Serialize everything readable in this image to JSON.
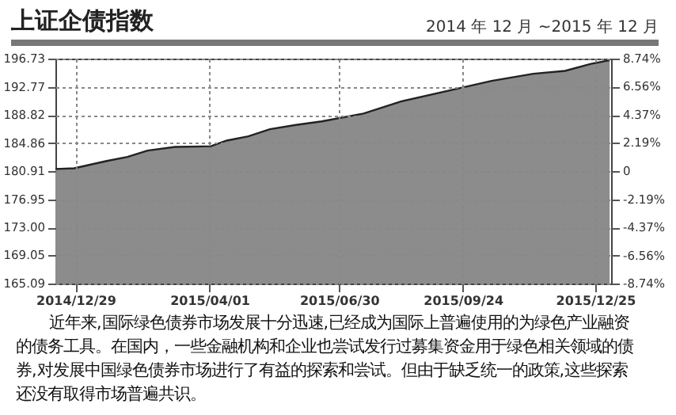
{
  "chart_data": {
    "type": "area",
    "title": "上证企债指数",
    "subtitle": "2014 年 12 月 ~2015 年 12 月",
    "x": [
      "2014-12-15",
      "2014-12-28",
      "2015-01-19",
      "2015-02-03",
      "2015-02-17",
      "2015-03-08",
      "2015-04-02",
      "2015-04-13",
      "2015-04-28",
      "2015-05-13",
      "2015-05-31",
      "2015-06-18",
      "2015-07-17",
      "2015-08-12",
      "2015-09-18",
      "2015-10-14",
      "2015-11-12",
      "2015-12-04",
      "2015-12-22",
      "2016-01-04"
    ],
    "series": [
      {
        "color": "#8c8c8c",
        "values": [
          181.2,
          181.3,
          182.3,
          182.9,
          183.8,
          184.3,
          184.4,
          185.2,
          185.8,
          186.8,
          187.4,
          187.9,
          189.0,
          190.7,
          192.4,
          193.6,
          194.6,
          195.0,
          196.0,
          196.5
        ]
      }
    ],
    "xlim": [
      "2014-12-15",
      "2016-01-05"
    ],
    "xticks": [
      {
        "value": "2014-12-29",
        "label": "2014/12/29"
      },
      {
        "value": "2015-04-01",
        "label": "2015/04/01"
      },
      {
        "value": "2015-06-30",
        "label": "2015/06/30"
      },
      {
        "value": "2015-09-24",
        "label": "2015/09/24"
      },
      {
        "value": "2015-12-25",
        "label": "2015/12/25"
      }
    ],
    "ylim": [
      165.09,
      196.73
    ],
    "yticks": [
      165.09,
      169.05,
      {
        "value": 173,
        "label": "173.00"
      },
      176.95,
      180.91,
      184.86,
      188.82,
      192.77,
      196.73
    ],
    "y2lim": [
      -8.74,
      8.74
    ],
    "y2ticks": [
      {
        "value": -8.74,
        "label": "-8.74%"
      },
      {
        "value": -6.56,
        "label": "-6.56%"
      },
      {
        "value": -4.37,
        "label": "-4.37%"
      },
      {
        "value": -2.19,
        "label": "-2.19%"
      },
      {
        "value": 0,
        "label": "0"
      },
      {
        "value": 2.19,
        "label": "2.19%"
      },
      {
        "value": 4.37,
        "label": "4.37%"
      },
      {
        "value": 6.56,
        "label": "6.56%"
      },
      {
        "value": 8.74,
        "label": "8.74%"
      }
    ],
    "grid": true,
    "annotations": [
      "近年来,国际绿色债券市场发展十分迅速,已经成为国际上普遍使用的为绿色产业融资的债务工具。在国内，一些金融机构和企业也尝试发行过募集资金用于绿色相关领域的债券,对发展中国绿色债券市场进行了有益的探索和尝试。但由于缺乏统一的政策,这些探索还没有取得市场普遍共识。"
    ]
  }
}
